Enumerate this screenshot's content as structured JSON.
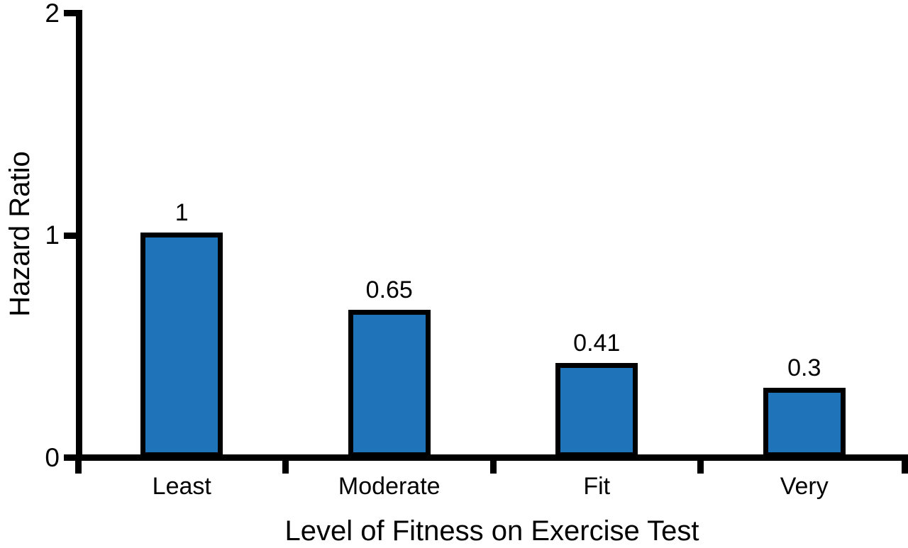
{
  "chart_data": {
    "type": "bar",
    "title": "",
    "xlabel": "Level of Fitness on Exercise Test",
    "ylabel": "Hazard Ratio",
    "categories": [
      "Least",
      "Moderate",
      "Fit",
      "Very"
    ],
    "values": [
      1,
      0.65,
      0.41,
      0.3
    ],
    "value_labels": [
      "1",
      "0.65",
      "0.41",
      "0.3"
    ],
    "ylim": [
      0,
      2
    ],
    "yticks": [
      "0",
      "1",
      "2"
    ],
    "grid": false,
    "legend": null,
    "bar_color": "#1F73B8",
    "bar_border_color": "#000000",
    "axis_color": "#000000",
    "text_color": "#000000",
    "background_color": "#FFFFFF"
  }
}
